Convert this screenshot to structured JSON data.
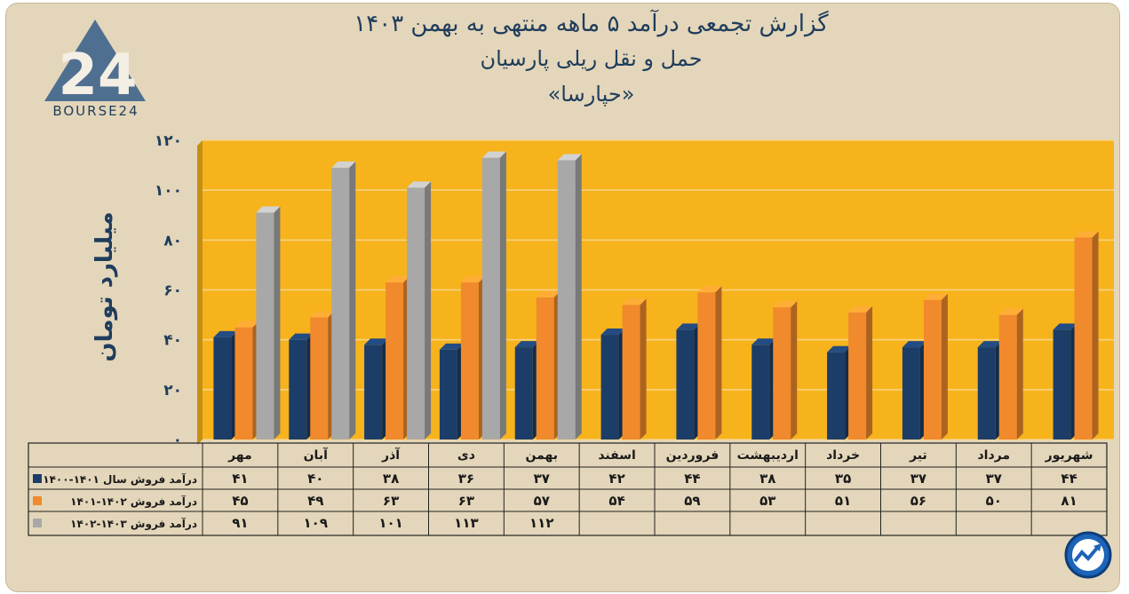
{
  "title_lines": [
    "گزارش تجمعی درآمد ۵ ماهه منتهی به بهمن ۱۴۰۳",
    "حمل و نقل ریلی پارسیان",
    "«حپارسا»"
  ],
  "logo_text": "BOURSE24",
  "logo_mark": "24",
  "colors": {
    "background": "#e4d6ba",
    "plot_area": "#f6b31c",
    "series_1": "#1c3d68",
    "series_2": "#f08a2c",
    "series_3": "#a8a8a8",
    "text": "#1f3d5c"
  },
  "chart_data": {
    "type": "bar",
    "ylabel": "میلیارد تومان",
    "ylim": [
      0,
      120
    ],
    "y_ticks": [
      "۰",
      "۲۰",
      "۴۰",
      "۶۰",
      "۸۰",
      "۱۰۰",
      "۱۲۰"
    ],
    "y_tick_values": [
      0,
      20,
      40,
      60,
      80,
      100,
      120
    ],
    "grid": true,
    "categories": [
      "مهر",
      "آبان",
      "آذر",
      "دی",
      "بهمن",
      "اسفند",
      "فروردین",
      "اردیبهشت",
      "خرداد",
      "تیر",
      "مرداد",
      "شهریور"
    ],
    "series": [
      {
        "name": "درآمد فروش سال ۱۴۰۱-۱۴۰۰",
        "values": [
          41,
          40,
          38,
          36,
          37,
          42,
          44,
          38,
          35,
          37,
          37,
          44
        ],
        "labels": [
          "۴۱",
          "۴۰",
          "۳۸",
          "۳۶",
          "۳۷",
          "۴۲",
          "۴۴",
          "۳۸",
          "۳۵",
          "۳۷",
          "۳۷",
          "۴۴"
        ]
      },
      {
        "name": "درآمد فروش ۱۴۰۲-۱۴۰۱",
        "values": [
          45,
          49,
          63,
          63,
          57,
          54,
          59,
          53,
          51,
          56,
          50,
          81
        ],
        "labels": [
          "۴۵",
          "۴۹",
          "۶۳",
          "۶۳",
          "۵۷",
          "۵۴",
          "۵۹",
          "۵۳",
          "۵۱",
          "۵۶",
          "۵۰",
          "۸۱"
        ]
      },
      {
        "name": "درآمد فروش ۱۴۰۳-۱۴۰۲",
        "values": [
          91,
          109,
          101,
          113,
          112,
          null,
          null,
          null,
          null,
          null,
          null,
          null
        ],
        "labels": [
          "۹۱",
          "۱۰۹",
          "۱۰۱",
          "۱۱۳",
          "۱۱۲",
          "",
          "",
          "",
          "",
          "",
          "",
          ""
        ]
      }
    ]
  }
}
